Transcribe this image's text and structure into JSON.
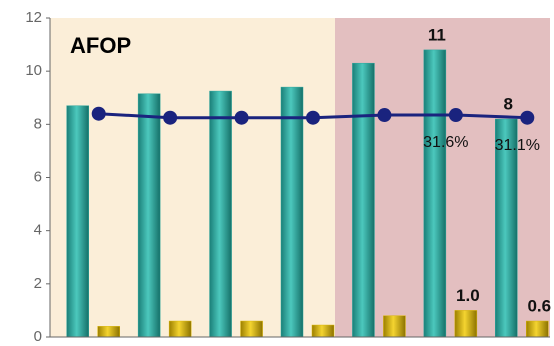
{
  "chart_data": {
    "type": "bar-line",
    "title": "AFOP",
    "categories": [
      null,
      null,
      null,
      null,
      null,
      null,
      null
    ],
    "ylim": [
      0,
      12
    ],
    "yticks": [
      0,
      2,
      4,
      6,
      8,
      10,
      12
    ],
    "series": [
      {
        "name": null,
        "kind": "bar",
        "color": "#2aa59c",
        "values": [
          8.7,
          9.15,
          9.25,
          9.4,
          10.3,
          10.8,
          8.2
        ],
        "value_labels": [
          null,
          null,
          null,
          null,
          null,
          "11",
          "8"
        ]
      },
      {
        "name": null,
        "kind": "bar",
        "color": "#d9b400",
        "values": [
          0.4,
          0.6,
          0.6,
          0.45,
          0.8,
          1.0,
          0.6
        ],
        "value_labels": [
          null,
          null,
          null,
          null,
          null,
          "1.0",
          "0.6"
        ]
      },
      {
        "name": null,
        "kind": "line",
        "color": "#1a237e",
        "values": [
          8.4,
          8.25,
          8.25,
          8.25,
          8.35,
          8.35,
          8.25
        ]
      }
    ],
    "annotations": [
      "31.6%",
      "31.1%"
    ]
  }
}
